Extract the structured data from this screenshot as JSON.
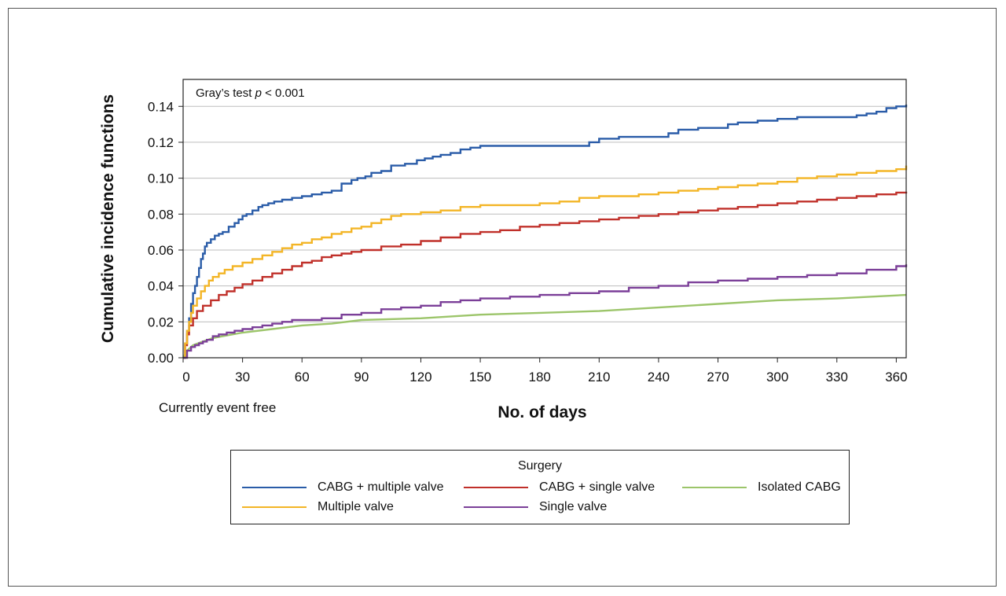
{
  "chart_data": {
    "type": "line",
    "title": "",
    "xlabel": "No. of days",
    "ylabel": "Cumulative incidence functions",
    "xlim": [
      0,
      365
    ],
    "ylim": [
      0,
      0.155
    ],
    "x_ticks": [
      0,
      30,
      60,
      90,
      120,
      150,
      180,
      210,
      240,
      270,
      300,
      330,
      360
    ],
    "y_ticks": [
      0,
      0.02,
      0.04,
      0.06,
      0.08,
      0.1,
      0.12,
      0.14
    ],
    "y_tick_labels": [
      "0.00",
      "0.02",
      "0.04",
      "0.06",
      "0.08",
      "0.10",
      "0.12",
      "0.14"
    ],
    "grid": "horizontal",
    "annotation": {
      "prefix": "Gray’s test ",
      "italic": "p",
      "suffix": " < 0.001"
    },
    "below_axis_note": "Currently event free",
    "legend": {
      "title": "Surgery",
      "placement": "below"
    },
    "series": [
      {
        "name": "CABG + multiple valve",
        "color": "#2a5ca8",
        "step": true,
        "x": [
          0,
          1,
          2,
          3,
          4,
          5,
          6,
          7,
          8,
          9,
          10,
          11,
          12,
          14,
          16,
          18,
          20,
          23,
          26,
          28,
          30,
          32,
          35,
          38,
          40,
          43,
          46,
          50,
          55,
          60,
          65,
          70,
          75,
          80,
          85,
          88,
          92,
          95,
          100,
          105,
          112,
          118,
          122,
          126,
          130,
          135,
          140,
          145,
          150,
          160,
          170,
          180,
          190,
          195,
          200,
          205,
          210,
          220,
          230,
          240,
          245,
          250,
          260,
          270,
          275,
          280,
          290,
          300,
          310,
          320,
          330,
          340,
          345,
          350,
          355,
          360,
          365
        ],
        "y": [
          0,
          0.008,
          0.015,
          0.022,
          0.03,
          0.036,
          0.04,
          0.045,
          0.05,
          0.055,
          0.058,
          0.062,
          0.064,
          0.066,
          0.068,
          0.069,
          0.07,
          0.073,
          0.075,
          0.077,
          0.079,
          0.08,
          0.082,
          0.084,
          0.085,
          0.086,
          0.087,
          0.088,
          0.089,
          0.09,
          0.091,
          0.092,
          0.093,
          0.097,
          0.099,
          0.1,
          0.101,
          0.103,
          0.104,
          0.107,
          0.108,
          0.11,
          0.111,
          0.112,
          0.113,
          0.114,
          0.116,
          0.117,
          0.118,
          0.118,
          0.118,
          0.118,
          0.118,
          0.118,
          0.118,
          0.12,
          0.122,
          0.123,
          0.123,
          0.123,
          0.125,
          0.127,
          0.128,
          0.128,
          0.13,
          0.131,
          0.132,
          0.133,
          0.134,
          0.134,
          0.134,
          0.135,
          0.136,
          0.137,
          0.139,
          0.14,
          0.141
        ]
      },
      {
        "name": "CABG + single valve",
        "color": "#c0302a",
        "step": true,
        "x": [
          0,
          1,
          2,
          3,
          5,
          7,
          10,
          14,
          18,
          22,
          26,
          30,
          35,
          40,
          45,
          50,
          55,
          60,
          65,
          70,
          75,
          80,
          85,
          90,
          100,
          110,
          120,
          130,
          140,
          150,
          160,
          170,
          180,
          190,
          200,
          210,
          220,
          230,
          240,
          250,
          260,
          270,
          280,
          290,
          300,
          310,
          320,
          330,
          340,
          350,
          360,
          365
        ],
        "y": [
          0,
          0.007,
          0.013,
          0.018,
          0.022,
          0.026,
          0.029,
          0.032,
          0.035,
          0.037,
          0.039,
          0.041,
          0.043,
          0.045,
          0.047,
          0.049,
          0.051,
          0.053,
          0.054,
          0.056,
          0.057,
          0.058,
          0.059,
          0.06,
          0.062,
          0.063,
          0.065,
          0.067,
          0.069,
          0.07,
          0.071,
          0.073,
          0.074,
          0.075,
          0.076,
          0.077,
          0.078,
          0.079,
          0.08,
          0.081,
          0.082,
          0.083,
          0.084,
          0.085,
          0.086,
          0.087,
          0.088,
          0.089,
          0.09,
          0.091,
          0.092,
          0.0925
        ]
      },
      {
        "name": "Isolated CABG",
        "color": "#9cc56a",
        "step": false,
        "x": [
          0,
          2,
          5,
          10,
          15,
          20,
          30,
          45,
          60,
          75,
          90,
          120,
          150,
          180,
          210,
          240,
          270,
          300,
          330,
          365
        ],
        "y": [
          0,
          0.004,
          0.007,
          0.009,
          0.011,
          0.012,
          0.014,
          0.016,
          0.018,
          0.019,
          0.021,
          0.022,
          0.024,
          0.025,
          0.026,
          0.028,
          0.03,
          0.032,
          0.033,
          0.035
        ]
      },
      {
        "name": "Multiple valve",
        "color": "#f3b526",
        "step": true,
        "x": [
          0,
          1,
          2,
          3,
          4,
          5,
          7,
          9,
          11,
          13,
          15,
          18,
          21,
          25,
          30,
          35,
          40,
          45,
          50,
          55,
          60,
          65,
          70,
          75,
          80,
          85,
          90,
          95,
          100,
          105,
          110,
          120,
          130,
          140,
          150,
          160,
          170,
          180,
          190,
          200,
          210,
          220,
          230,
          240,
          250,
          260,
          270,
          280,
          290,
          300,
          310,
          320,
          330,
          340,
          350,
          360,
          365
        ],
        "y": [
          0,
          0.008,
          0.015,
          0.02,
          0.025,
          0.029,
          0.033,
          0.037,
          0.04,
          0.043,
          0.045,
          0.047,
          0.049,
          0.051,
          0.053,
          0.055,
          0.057,
          0.059,
          0.061,
          0.063,
          0.064,
          0.066,
          0.067,
          0.069,
          0.07,
          0.072,
          0.073,
          0.075,
          0.077,
          0.079,
          0.08,
          0.081,
          0.082,
          0.084,
          0.085,
          0.085,
          0.085,
          0.086,
          0.087,
          0.089,
          0.09,
          0.09,
          0.091,
          0.092,
          0.093,
          0.094,
          0.095,
          0.096,
          0.097,
          0.098,
          0.1,
          0.101,
          0.102,
          0.103,
          0.104,
          0.105,
          0.107
        ]
      },
      {
        "name": "Single valve",
        "color": "#7b3f98",
        "step": true,
        "x": [
          0,
          2,
          4,
          6,
          8,
          10,
          12,
          15,
          18,
          22,
          26,
          30,
          35,
          40,
          45,
          50,
          55,
          60,
          70,
          80,
          90,
          100,
          110,
          120,
          130,
          140,
          150,
          165,
          180,
          195,
          210,
          225,
          240,
          255,
          270,
          285,
          300,
          315,
          330,
          345,
          360,
          365
        ],
        "y": [
          0,
          0.004,
          0.006,
          0.007,
          0.008,
          0.009,
          0.01,
          0.012,
          0.013,
          0.014,
          0.015,
          0.016,
          0.017,
          0.018,
          0.019,
          0.02,
          0.021,
          0.021,
          0.022,
          0.024,
          0.025,
          0.027,
          0.028,
          0.029,
          0.031,
          0.032,
          0.033,
          0.034,
          0.035,
          0.036,
          0.037,
          0.039,
          0.04,
          0.042,
          0.043,
          0.044,
          0.045,
          0.046,
          0.047,
          0.049,
          0.051,
          0.052
        ]
      }
    ]
  }
}
